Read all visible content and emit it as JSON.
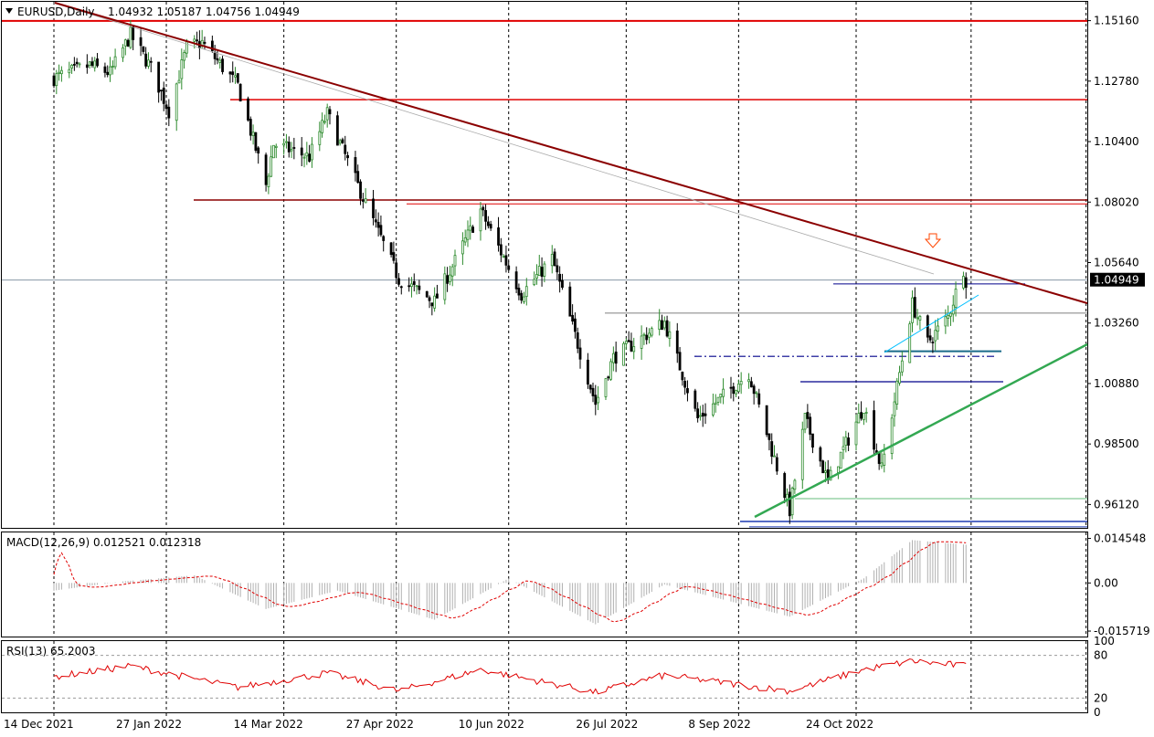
{
  "header": {
    "symbol": "EURUSD,Daily",
    "ohlc": "1.04932 1.05187 1.04756 1.04949"
  },
  "colors": {
    "bull": "#2e8b2e",
    "bear": "#000000",
    "horizontal_levels": "#e00000",
    "trendline": "#8b0000",
    "support_trendline": "#33a852",
    "channel_line": "#00bfff",
    "blue_levels": "#00008b",
    "macd_signal": "#e00000",
    "rsi_line": "#e00000",
    "current_price_bg": "#000000"
  },
  "chart_data": [
    {
      "type": "candlestick",
      "title": "EURUSD,Daily",
      "x_tick_labels": [
        "14 Dec 2021",
        "27 Jan 2022",
        "14 Mar 2022",
        "27 Apr 2022",
        "10 Jun 2022",
        "26 Jul 2022",
        "8 Sep 2022",
        "24 Oct 2022"
      ],
      "y_tick_labels": [
        "1.15160",
        "1.12780",
        "1.10400",
        "1.08020",
        "1.05640",
        "1.03260",
        "1.00880",
        "0.98500",
        "0.96120"
      ],
      "ylim": [
        0.952,
        1.159
      ],
      "current_price": "1.04949",
      "grid": "vertical dashed",
      "anchors": [
        {
          "date": "2021-12-14",
          "value": 1.129
        },
        {
          "date": "2021-12-28",
          "value": 1.134
        },
        {
          "date": "2022-01-05",
          "value": 1.131
        },
        {
          "date": "2022-01-13",
          "value": 1.146
        },
        {
          "date": "2022-01-21",
          "value": 1.133
        },
        {
          "date": "2022-01-28",
          "value": 1.116
        },
        {
          "date": "2022-02-04",
          "value": 1.141
        },
        {
          "date": "2022-02-10",
          "value": 1.143
        },
        {
          "date": "2022-02-24",
          "value": 1.126
        },
        {
          "date": "2022-03-07",
          "value": 1.087
        },
        {
          "date": "2022-03-10",
          "value": 1.103
        },
        {
          "date": "2022-03-24",
          "value": 1.098
        },
        {
          "date": "2022-03-31",
          "value": 1.115
        },
        {
          "date": "2022-04-14",
          "value": 1.082
        },
        {
          "date": "2022-04-28",
          "value": 1.05
        },
        {
          "date": "2022-05-12",
          "value": 1.041
        },
        {
          "date": "2022-05-30",
          "value": 1.077
        },
        {
          "date": "2022-06-15",
          "value": 1.044
        },
        {
          "date": "2022-06-27",
          "value": 1.058
        },
        {
          "date": "2022-07-14",
          "value": 1.001
        },
        {
          "date": "2022-07-21",
          "value": 1.019
        },
        {
          "date": "2022-08-10",
          "value": 1.033
        },
        {
          "date": "2022-08-23",
          "value": 0.995
        },
        {
          "date": "2022-09-12",
          "value": 1.013
        },
        {
          "date": "2022-09-28",
          "value": 0.959
        },
        {
          "date": "2022-10-04",
          "value": 0.995
        },
        {
          "date": "2022-10-13",
          "value": 0.97
        },
        {
          "date": "2022-10-27",
          "value": 1.0
        },
        {
          "date": "2022-11-03",
          "value": 0.975
        },
        {
          "date": "2022-11-15",
          "value": 1.04
        },
        {
          "date": "2022-11-21",
          "value": 1.025
        },
        {
          "date": "2022-11-29",
          "value": 1.035
        },
        {
          "date": "2022-12-05",
          "value": 1.054
        },
        {
          "date": "2022-12-06",
          "value": 1.0495
        }
      ],
      "horizontal_levels": [
        1.1515,
        1.1205,
        1.081,
        1.0795
      ],
      "blue_levels": [
        1.048,
        1.0215,
        1.0195,
        1.0095,
        0.9545,
        0.9535
      ],
      "trendline": [
        {
          "date": "2021-12-14",
          "value": 1.16
        },
        {
          "date": "2022-12-06",
          "value": 1.051
        }
      ],
      "support_trendline": [
        {
          "date": "2022-09-28",
          "value": 0.9555
        },
        {
          "date": "2022-11-30",
          "value": 1.009
        }
      ]
    },
    {
      "type": "bar",
      "title": "MACD(12,26,9) 0.012521 0.012318",
      "y_tick_labels": [
        "0.014548",
        "0.00",
        "-0.015719"
      ],
      "ylim": [
        -0.0175,
        0.0165
      ],
      "signal_style": "red dashed line",
      "anchors": [
        {
          "date": "2021-12-14",
          "value": -0.0025
        },
        {
          "date": "2022-01-10",
          "value": 0.0005
        },
        {
          "date": "2022-02-07",
          "value": 0.0025
        },
        {
          "date": "2022-03-07",
          "value": -0.0085
        },
        {
          "date": "2022-04-04",
          "value": -0.0025
        },
        {
          "date": "2022-05-12",
          "value": -0.012
        },
        {
          "date": "2022-06-10",
          "value": 0.0015
        },
        {
          "date": "2022-07-14",
          "value": -0.0135
        },
        {
          "date": "2022-08-10",
          "value": -0.0005
        },
        {
          "date": "2022-09-28",
          "value": -0.011
        },
        {
          "date": "2022-10-27",
          "value": 0.0015
        },
        {
          "date": "2022-11-15",
          "value": 0.014
        },
        {
          "date": "2022-12-06",
          "value": 0.0125
        }
      ]
    },
    {
      "type": "line",
      "title": "RSI(13) 65.2003",
      "y_tick_labels": [
        "100",
        "80",
        "20",
        "0"
      ],
      "ylim": [
        0,
        100
      ],
      "levels": [
        80,
        20
      ],
      "anchors": [
        {
          "date": "2021-12-14",
          "value": 50
        },
        {
          "date": "2022-01-13",
          "value": 65
        },
        {
          "date": "2022-02-24",
          "value": 35
        },
        {
          "date": "2022-03-31",
          "value": 55
        },
        {
          "date": "2022-04-28",
          "value": 30
        },
        {
          "date": "2022-05-30",
          "value": 60
        },
        {
          "date": "2022-07-14",
          "value": 28
        },
        {
          "date": "2022-08-10",
          "value": 52
        },
        {
          "date": "2022-09-28",
          "value": 30
        },
        {
          "date": "2022-10-27",
          "value": 60
        },
        {
          "date": "2022-11-15",
          "value": 72
        },
        {
          "date": "2022-12-06",
          "value": 65
        }
      ]
    }
  ]
}
